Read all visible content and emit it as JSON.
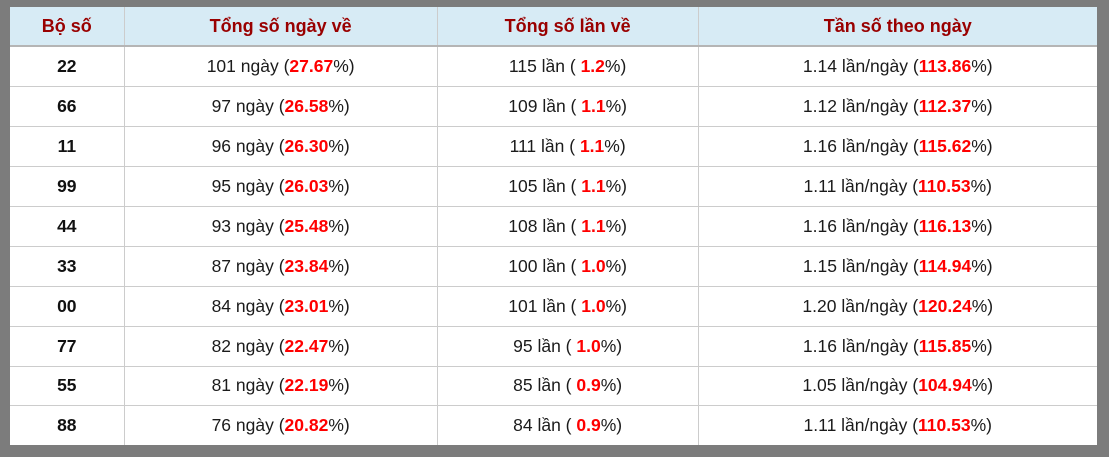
{
  "colors": {
    "frame": "#7c7c7c",
    "header_bg": "#d7ebf5",
    "header_text": "#990000",
    "highlight": "#ff0000",
    "grid_border": "#cccccc"
  },
  "table": {
    "columns": [
      {
        "key": "pair",
        "label": "Bộ số"
      },
      {
        "key": "days",
        "label": "Tổng số ngày về"
      },
      {
        "key": "times",
        "label": "Tổng số lần về"
      },
      {
        "key": "freq",
        "label": "Tần số theo ngày"
      }
    ],
    "units": {
      "days": "ngày",
      "times": "lần",
      "freq": "lần/ngày"
    },
    "rows": [
      {
        "pair": "22",
        "days": "101",
        "days_pct": "27.67",
        "times": "115",
        "times_pct": "1.2",
        "freq": "1.14",
        "freq_pct": "113.86"
      },
      {
        "pair": "66",
        "days": "97",
        "days_pct": "26.58",
        "times": "109",
        "times_pct": "1.1",
        "freq": "1.12",
        "freq_pct": "112.37"
      },
      {
        "pair": "11",
        "days": "96",
        "days_pct": "26.30",
        "times": "111",
        "times_pct": "1.1",
        "freq": "1.16",
        "freq_pct": "115.62"
      },
      {
        "pair": "99",
        "days": "95",
        "days_pct": "26.03",
        "times": "105",
        "times_pct": "1.1",
        "freq": "1.11",
        "freq_pct": "110.53"
      },
      {
        "pair": "44",
        "days": "93",
        "days_pct": "25.48",
        "times": "108",
        "times_pct": "1.1",
        "freq": "1.16",
        "freq_pct": "116.13"
      },
      {
        "pair": "33",
        "days": "87",
        "days_pct": "23.84",
        "times": "100",
        "times_pct": "1.0",
        "freq": "1.15",
        "freq_pct": "114.94"
      },
      {
        "pair": "00",
        "days": "84",
        "days_pct": "23.01",
        "times": "101",
        "times_pct": "1.0",
        "freq": "1.20",
        "freq_pct": "120.24"
      },
      {
        "pair": "77",
        "days": "82",
        "days_pct": "22.47",
        "times": "95",
        "times_pct": "1.0",
        "freq": "1.16",
        "freq_pct": "115.85"
      },
      {
        "pair": "55",
        "days": "81",
        "days_pct": "22.19",
        "times": "85",
        "times_pct": "0.9",
        "freq": "1.05",
        "freq_pct": "104.94"
      },
      {
        "pair": "88",
        "days": "76",
        "days_pct": "20.82",
        "times": "84",
        "times_pct": "0.9",
        "freq": "1.11",
        "freq_pct": "110.53"
      }
    ]
  }
}
